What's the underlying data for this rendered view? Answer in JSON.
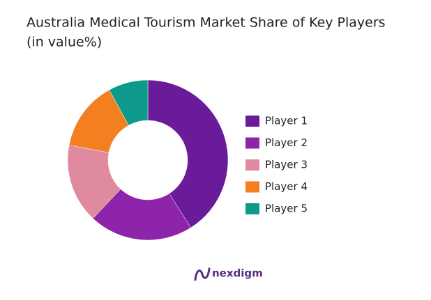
{
  "chart_data": {
    "type": "pie",
    "title": "Australia Medical Tourism Market Share of Key Players",
    "subtitle": "(in value%)",
    "categories": [
      "Player 1",
      "Player 2",
      "Player 3",
      "Player 4",
      "Player 5"
    ],
    "values": [
      41,
      21,
      16,
      14,
      8
    ],
    "colors": [
      "#6a1b9a",
      "#8e24aa",
      "#e08aa0",
      "#f37f20",
      "#0e9a8a"
    ],
    "donut": true,
    "legend": "right"
  },
  "logo": "nexdigm"
}
